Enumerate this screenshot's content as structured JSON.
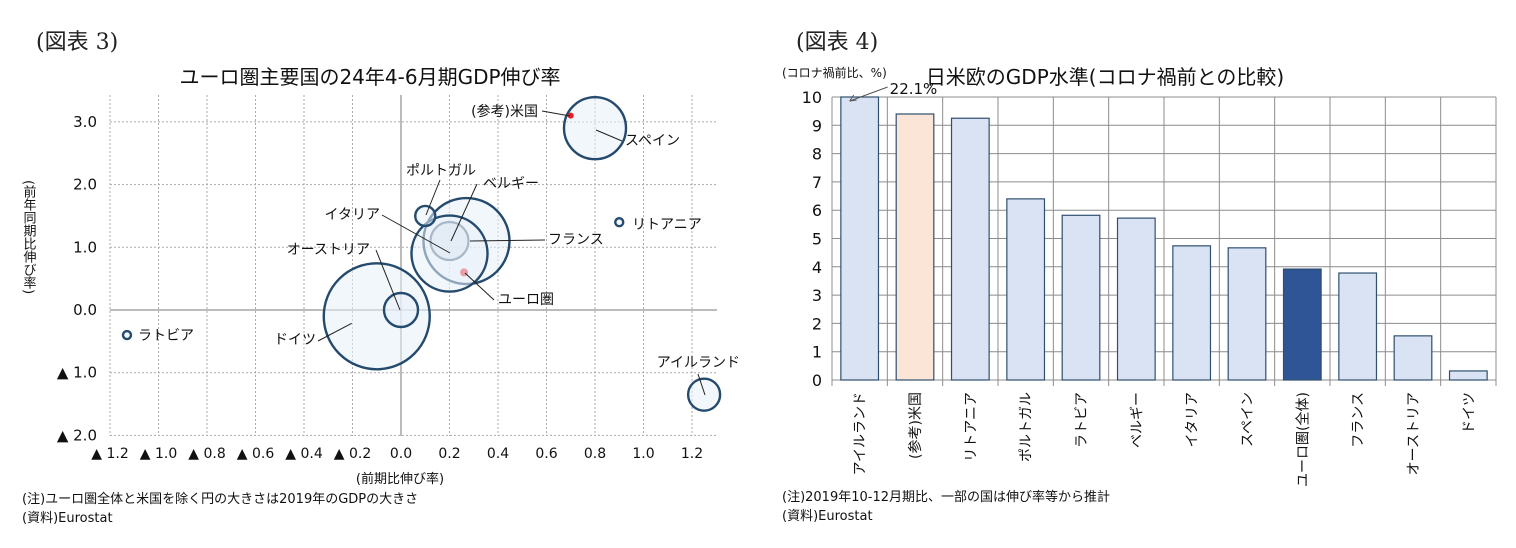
{
  "figure3": {
    "figure_label": "(図表 3)",
    "note": "(注)ユーロ圏全体と米国を除く円の大きさは2019年のGDPの大きさ",
    "source": "(資料)Eurostat"
  },
  "figure4": {
    "figure_label": "(図表 4)",
    "note": "(注)2019年10-12月期比、一部の国は伸び率等から推計",
    "source": "(資料)Eurostat"
  },
  "chart_data": [
    {
      "type": "scatter",
      "title": "ユーロ圏主要国の24年4-6月期GDP伸び率",
      "xlabel": "(前期比伸び率)",
      "ylabel": "(前年同期比伸び率)",
      "xlim": [
        -1.3,
        1.3
      ],
      "ylim": [
        -2.0,
        3.5
      ],
      "xticks": [
        -1.2,
        -1.0,
        -0.8,
        -0.6,
        -0.4,
        -0.2,
        0.0,
        0.2,
        0.4,
        0.6,
        0.8,
        1.0,
        1.2
      ],
      "xtick_labels": [
        "▲ 1.2",
        "▲ 1.0",
        "▲ 0.8",
        "▲ 0.6",
        "▲ 0.4",
        "▲ 0.2",
        "0.0",
        "0.2",
        "0.4",
        "0.6",
        "0.8",
        "1.0",
        "1.2"
      ],
      "yticks": [
        3.0,
        2.0,
        1.0,
        0.0,
        -1.0,
        -2.0
      ],
      "ytick_labels": [
        "3.0",
        "2.0",
        "1.0",
        "0.0",
        "▲ 1.0",
        "▲ 2.0"
      ],
      "grid": true,
      "size_meaning": "2019年のGDPの大きさ",
      "points": [
        {
          "name": "ドイツ",
          "x": -0.1,
          "y": -0.1,
          "size": 53,
          "style": "bubble"
        },
        {
          "name": "フランス",
          "x": 0.27,
          "y": 1.1,
          "size": 43,
          "style": "bubble"
        },
        {
          "name": "イタリア",
          "x": 0.2,
          "y": 0.9,
          "size": 38,
          "style": "bubble"
        },
        {
          "name": "スペイン",
          "x": 0.8,
          "y": 2.9,
          "size": 31,
          "style": "bubble"
        },
        {
          "name": "ベルギー",
          "x": 0.2,
          "y": 1.1,
          "size": 19,
          "style": "bubble-light"
        },
        {
          "name": "オーストリア",
          "x": 0.0,
          "y": 0.0,
          "size": 17,
          "style": "bubble"
        },
        {
          "name": "アイルランド",
          "x": 1.25,
          "y": -1.35,
          "size": 16,
          "style": "bubble"
        },
        {
          "name": "ポルトガル",
          "x": 0.1,
          "y": 1.5,
          "size": 10,
          "style": "bubble"
        },
        {
          "name": "リトアニア",
          "x": 0.9,
          "y": 1.4,
          "size": 4,
          "style": "bubble"
        },
        {
          "name": "ラトビア",
          "x": -1.13,
          "y": -0.4,
          "size": 4,
          "style": "bubble"
        },
        {
          "name": "ユーロ圏",
          "x": 0.26,
          "y": 0.6,
          "size": 3,
          "style": "dot-pink"
        },
        {
          "name": "(参考)米国",
          "x": 0.7,
          "y": 3.1,
          "size": 3,
          "style": "dot-red"
        }
      ]
    },
    {
      "type": "bar",
      "title": "日米欧のGDP水準(コロナ禍前との比較)",
      "ylabel": "(コロナ禍前比、%)",
      "ylim": [
        0,
        10
      ],
      "yticks": [
        0,
        1,
        2,
        3,
        4,
        5,
        6,
        7,
        8,
        9,
        10
      ],
      "grid": true,
      "categories": [
        "アイルランド",
        "(参考)米国",
        "リトアニア",
        "ポルトガル",
        "ラトビア",
        "ベルギー",
        "イタリア",
        "スペイン",
        "ユーロ圏(全体)",
        "フランス",
        "オーストリア",
        "ドイツ"
      ],
      "values": [
        22.1,
        9.4,
        9.25,
        6.4,
        5.82,
        5.72,
        4.74,
        4.67,
        3.92,
        3.78,
        1.56,
        0.32
      ],
      "bar_colors": [
        "#dae3f3",
        "#fbe5d6",
        "#dae3f3",
        "#dae3f3",
        "#dae3f3",
        "#dae3f3",
        "#dae3f3",
        "#dae3f3",
        "#2f5597",
        "#dae3f3",
        "#dae3f3",
        "#dae3f3"
      ],
      "annotations": [
        {
          "target": "アイルランド",
          "text": "22.1%"
        }
      ]
    }
  ]
}
